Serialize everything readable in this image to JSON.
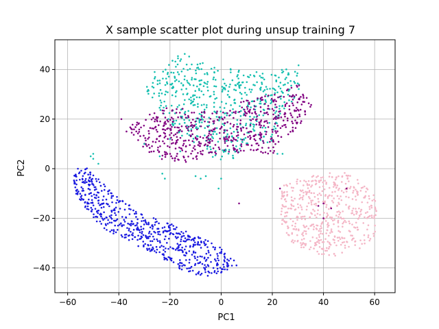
{
  "chart_data": {
    "type": "scatter",
    "title": "X sample scatter plot during unsup training 7",
    "xlabel": "PC1",
    "ylabel": "PC2",
    "xlim": [
      -65,
      68
    ],
    "ylim": [
      -50,
      52
    ],
    "xticks": [
      -60,
      -40,
      -20,
      0,
      20,
      40,
      60
    ],
    "yticks": [
      -40,
      -20,
      0,
      20,
      40
    ],
    "grid": true,
    "legend": "none",
    "series": [
      {
        "color": "#1a1ae0",
        "cluster": "lower-left diagonal band",
        "outline": [
          [
            -56,
            0
          ],
          [
            -53,
            1
          ],
          [
            -47,
            -5
          ],
          [
            -40,
            -12
          ],
          [
            -30,
            -18
          ],
          [
            -20,
            -22
          ],
          [
            -10,
            -27
          ],
          [
            -2,
            -30
          ],
          [
            5,
            -37
          ],
          [
            4,
            -41
          ],
          [
            -6,
            -44
          ],
          [
            -15,
            -41
          ],
          [
            -25,
            -35
          ],
          [
            -35,
            -30
          ],
          [
            -45,
            -25
          ],
          [
            -52,
            -18
          ],
          [
            -58,
            -8
          ],
          [
            -59,
            -2
          ]
        ],
        "count": 620
      },
      {
        "color": "#14bfb0",
        "cluster": "upper cluster",
        "outline": [
          [
            -28,
            35
          ],
          [
            -20,
            43
          ],
          [
            -15,
            47
          ],
          [
            -8,
            43
          ],
          [
            0,
            41
          ],
          [
            10,
            40
          ],
          [
            20,
            38
          ],
          [
            28,
            42
          ],
          [
            31,
            42
          ],
          [
            31,
            33
          ],
          [
            26,
            24
          ],
          [
            22,
            18
          ],
          [
            20,
            10
          ],
          [
            12,
            12
          ],
          [
            5,
            4
          ],
          [
            0,
            2
          ],
          [
            -10,
            10
          ],
          [
            -18,
            15
          ],
          [
            -25,
            25
          ],
          [
            -29,
            31
          ]
        ],
        "count": 560
      },
      {
        "color": "#800080",
        "cluster": "middle cluster",
        "outline": [
          [
            -37,
            17
          ],
          [
            -30,
            21
          ],
          [
            -20,
            25
          ],
          [
            -10,
            24
          ],
          [
            0,
            23
          ],
          [
            10,
            28
          ],
          [
            20,
            30
          ],
          [
            30,
            34
          ],
          [
            35,
            32
          ],
          [
            36,
            26
          ],
          [
            30,
            16
          ],
          [
            25,
            13
          ],
          [
            20,
            5
          ],
          [
            12,
            7
          ],
          [
            5,
            6
          ],
          [
            -5,
            5
          ],
          [
            -15,
            2
          ],
          [
            -25,
            4
          ],
          [
            -32,
            10
          ],
          [
            -37,
            15
          ]
        ],
        "count": 580
      },
      {
        "color": "#f4b6c6",
        "cluster": "right cluster",
        "outline": [
          [
            24,
            -7
          ],
          [
            30,
            -4
          ],
          [
            40,
            -2
          ],
          [
            48,
            -1
          ],
          [
            55,
            -5
          ],
          [
            60,
            -10
          ],
          [
            61,
            -20
          ],
          [
            60,
            -28
          ],
          [
            55,
            -32
          ],
          [
            50,
            -33
          ],
          [
            43,
            -36
          ],
          [
            37,
            -34
          ],
          [
            32,
            -32
          ],
          [
            27,
            -30
          ],
          [
            24,
            -25
          ],
          [
            23,
            -15
          ]
        ],
        "count": 520
      }
    ],
    "stragglers": [
      {
        "color": "#14bfb0",
        "points": [
          [
            -50,
            6
          ],
          [
            -50,
            4
          ],
          [
            -51,
            5
          ],
          [
            -48,
            2
          ],
          [
            -23,
            -2
          ],
          [
            -22,
            -4
          ],
          [
            -8,
            -4
          ],
          [
            -6,
            -3
          ],
          [
            -10,
            -3
          ],
          [
            -1,
            -8
          ],
          [
            0,
            -4
          ],
          [
            -16,
            7
          ],
          [
            -20,
            12
          ],
          [
            -24,
            5
          ],
          [
            -30,
            10
          ],
          [
            -29,
            33
          ],
          [
            -26,
            39
          ],
          [
            22,
            6
          ],
          [
            24,
            6
          ]
        ]
      },
      {
        "color": "#800080",
        "points": [
          [
            7,
            -14
          ],
          [
            23,
            -8
          ],
          [
            38,
            -15
          ],
          [
            40,
            -14
          ],
          [
            49,
            -8
          ],
          [
            40,
            -20
          ],
          [
            43,
            -16
          ],
          [
            -39,
            20
          ],
          [
            -37,
            15
          ]
        ]
      },
      {
        "color": "#1a1ae0",
        "points": [
          [
            -57,
            -3
          ],
          [
            -56,
            0
          ],
          [
            6,
            -39
          ],
          [
            5,
            -37
          ]
        ]
      }
    ]
  }
}
